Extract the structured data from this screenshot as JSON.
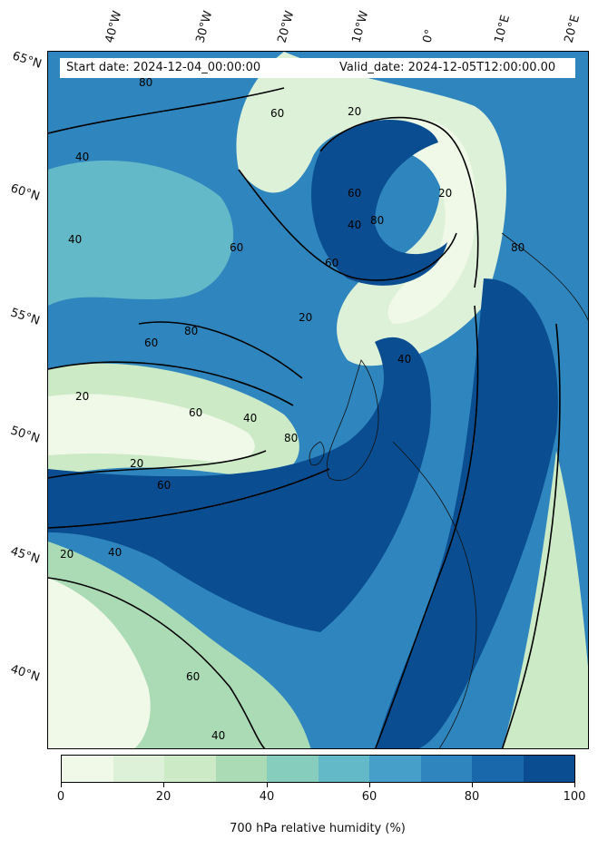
{
  "header": {
    "start_date": "Start date: 2024-12-04_00:00:00",
    "valid_date": "Valid_date: 2024-12-05T12:00:00.00"
  },
  "map": {
    "lat_labels": [
      "65°N",
      "60°N",
      "55°N",
      "50°N",
      "45°N",
      "40°N"
    ],
    "lon_labels": [
      "40°W",
      "30°W",
      "20°W",
      "10°W",
      "0°",
      "10°E",
      "20°E"
    ],
    "contour_labels": [
      "80",
      "60",
      "40",
      "20",
      "60",
      "80",
      "60",
      "40",
      "20",
      "60",
      "80",
      "40",
      "20",
      "60",
      "40",
      "20",
      "80",
      "40",
      "60",
      "20",
      "60",
      "20",
      "40",
      "80",
      "60",
      "40"
    ]
  },
  "colorbar": {
    "title": "700 hPa relative humidity (%)",
    "ticks": [
      "0",
      "20",
      "40",
      "60",
      "80",
      "100"
    ],
    "colors": [
      "#f0f9e8",
      "#ddf1d8",
      "#cbeac5",
      "#aadbb5",
      "#86cdbd",
      "#64b9c8",
      "#459fc9",
      "#2f86be",
      "#1968ab",
      "#0a4e91"
    ]
  }
}
